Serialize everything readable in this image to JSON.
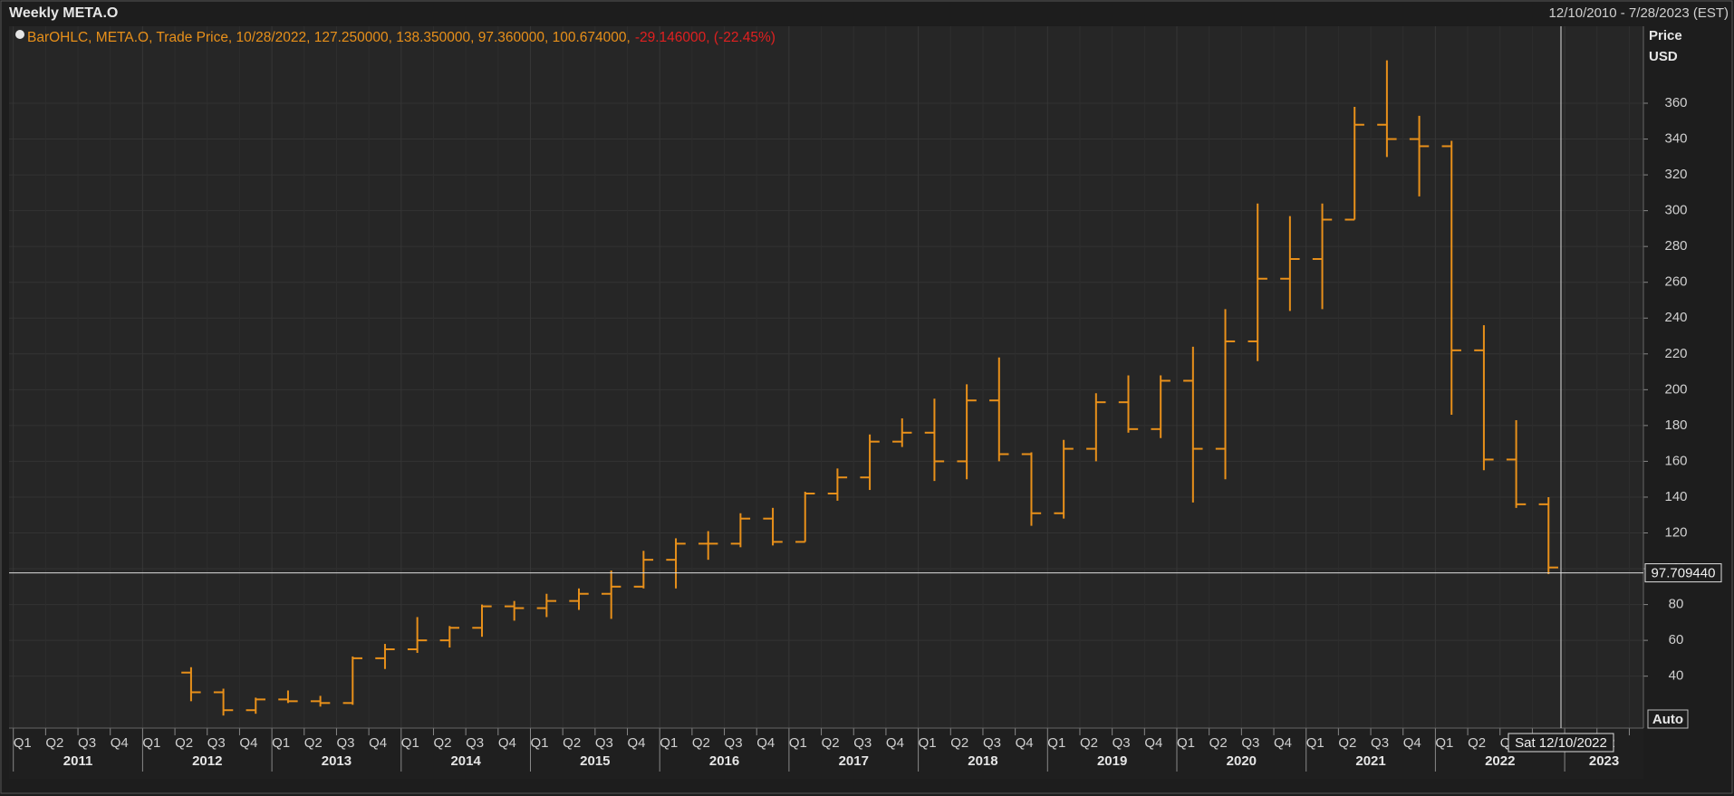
{
  "chart_data": {
    "type": "ohlc",
    "title": "Weekly META.O",
    "date_range": "12/10/2010 - 7/28/2023 (EST)",
    "legend_text": "BarOHLC, META.O, Trade Price, 10/28/2022, 127.250000, 138.350000, 97.360000, 100.674000,",
    "legend_change": "-29.146000, (-22.45%)",
    "y_label": "Price",
    "y_unit": "USD",
    "scale_mode": "Auto",
    "crosshair_value": {
      "value": 97.70944,
      "label": "97.709440"
    },
    "crosshair_date": "Sat 12/10/2022",
    "color": "#e8901a",
    "grid": true,
    "ylim": [
      11,
      403
    ],
    "yticks": [
      40,
      60,
      80,
      100,
      120,
      140,
      160,
      180,
      200,
      220,
      240,
      260,
      280,
      300,
      320,
      340,
      360
    ],
    "quarters": [
      "Q1",
      "Q2",
      "Q3",
      "Q4"
    ],
    "years": [
      2011,
      2012,
      2013,
      2014,
      2015,
      2016,
      2017,
      2018,
      2019,
      2020,
      2021,
      2022,
      2023
    ],
    "categories": [
      "2012 Q2",
      "2012 Q3",
      "2012 Q4",
      "2013 Q1",
      "2013 Q2",
      "2013 Q3",
      "2013 Q4",
      "2014 Q1",
      "2014 Q2",
      "2014 Q3",
      "2014 Q4",
      "2015 Q1",
      "2015 Q2",
      "2015 Q3",
      "2015 Q4",
      "2016 Q1",
      "2016 Q2",
      "2016 Q3",
      "2016 Q4",
      "2017 Q1",
      "2017 Q2",
      "2017 Q3",
      "2017 Q4",
      "2018 Q1",
      "2018 Q2",
      "2018 Q3",
      "2018 Q4",
      "2019 Q1",
      "2019 Q2",
      "2019 Q3",
      "2019 Q4",
      "2020 Q1",
      "2020 Q2",
      "2020 Q3",
      "2020 Q4",
      "2021 Q1",
      "2021 Q2",
      "2021 Q3",
      "2021 Q4",
      "2022 Q1",
      "2022 Q2",
      "2022 Q3",
      "2022 Q4"
    ],
    "open": [
      42,
      31,
      21,
      27,
      26,
      25,
      50,
      55,
      60,
      67,
      79,
      78,
      82,
      86,
      90,
      105,
      114,
      114,
      128,
      115,
      142,
      151,
      171,
      176,
      160,
      194,
      164,
      131,
      167,
      193,
      178,
      205,
      167,
      227,
      262,
      273,
      295,
      348,
      340,
      336,
      222,
      161,
      136
    ],
    "high": [
      45,
      33,
      28,
      32,
      29,
      51,
      58,
      73,
      68,
      80,
      82,
      86,
      89,
      99,
      110,
      117,
      121,
      131,
      134,
      143,
      156,
      175,
      184,
      195,
      203,
      218,
      165,
      172,
      198,
      208,
      208,
      224,
      245,
      304,
      297,
      304,
      358,
      384,
      353,
      339,
      236,
      183,
      140
    ],
    "low": [
      26,
      18,
      19,
      25,
      23,
      24,
      44,
      53,
      56,
      62,
      71,
      73,
      77,
      72,
      89,
      89,
      105,
      112,
      113,
      115,
      138,
      144,
      168,
      149,
      150,
      160,
      124,
      128,
      160,
      176,
      173,
      137,
      150,
      216,
      244,
      245,
      295,
      330,
      308,
      186,
      155,
      134,
      97
    ],
    "close": [
      31,
      21,
      27,
      26,
      25,
      50,
      55,
      60,
      67,
      79,
      78,
      82,
      86,
      90,
      105,
      114,
      114,
      128,
      115,
      142,
      151,
      171,
      176,
      160,
      194,
      164,
      131,
      167,
      193,
      178,
      205,
      167,
      227,
      262,
      273,
      295,
      348,
      340,
      336,
      222,
      161,
      136,
      100.7
    ]
  }
}
